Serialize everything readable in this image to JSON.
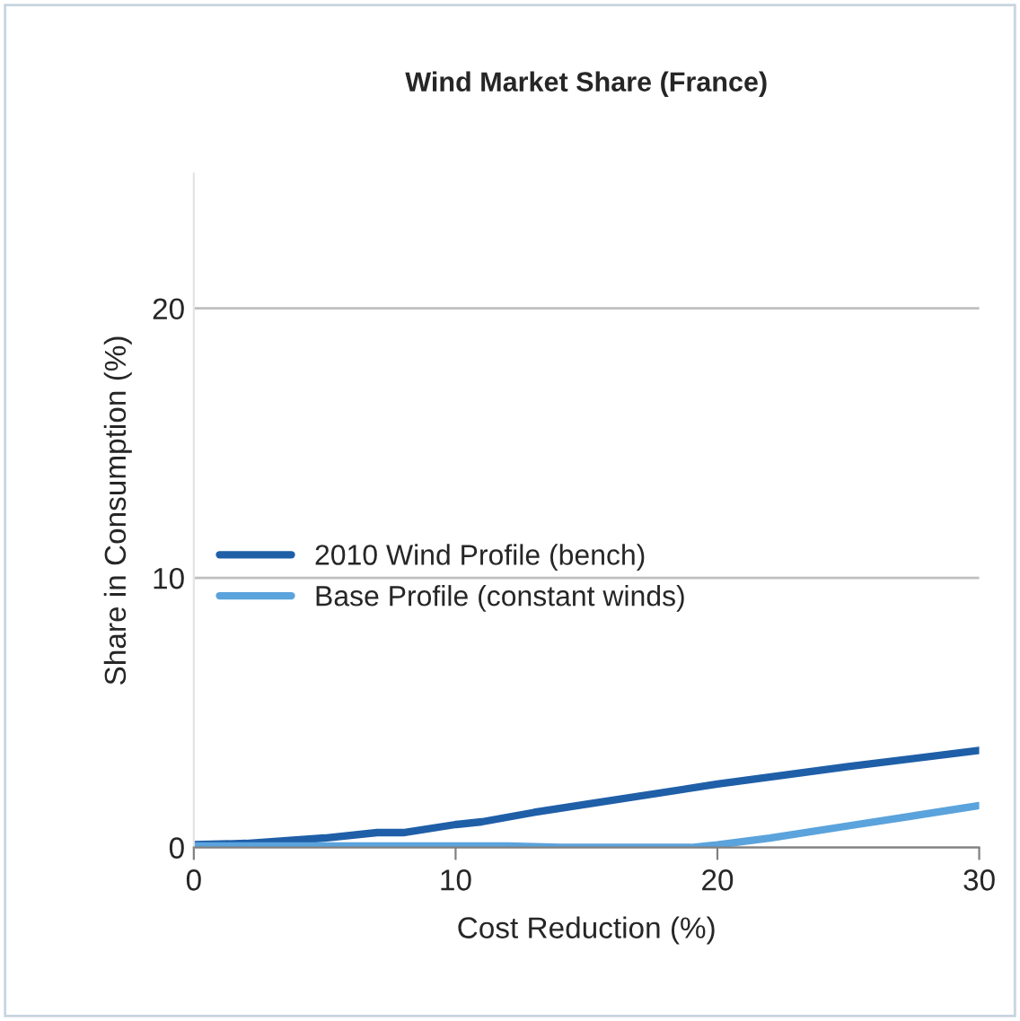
{
  "chart_data": {
    "type": "line",
    "title": "Wind Market Share (France)",
    "xlabel": "Cost Reduction (%)",
    "ylabel": "Share in Consumption (%)",
    "series": [
      {
        "name": "2010 Wind Profile (bench)",
        "color": "#1f5fa8",
        "x": [
          0,
          2,
          5,
          7,
          8,
          10,
          11,
          13,
          15,
          20,
          25,
          30
        ],
        "values": [
          0.1,
          0.15,
          0.35,
          0.55,
          0.55,
          0.85,
          0.95,
          1.3,
          1.6,
          2.35,
          3.0,
          3.6
        ]
      },
      {
        "name": "Base Profile (constant winds)",
        "color": "#5ba3dc",
        "x": [
          0,
          5,
          10,
          12,
          14,
          17,
          19,
          20,
          22,
          25,
          30
        ],
        "values": [
          0.05,
          0.05,
          0.05,
          0.05,
          0.0,
          0.0,
          0.0,
          0.1,
          0.35,
          0.8,
          1.55
        ]
      }
    ],
    "xlim": [
      0,
      30
    ],
    "ylim": [
      0,
      25
    ],
    "xticks": [
      0,
      10,
      20,
      30
    ],
    "yticks": [
      0,
      10,
      20
    ],
    "grid": "y",
    "legend": "left",
    "line_style": "solid",
    "marker": "none"
  }
}
